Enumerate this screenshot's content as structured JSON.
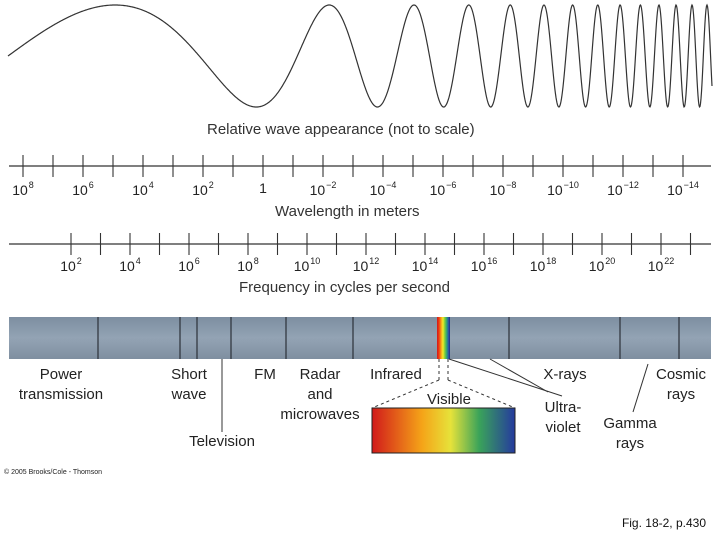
{
  "wave_caption": "Relative wave appearance (not to scale)",
  "wavelength": {
    "ticks": [
      {
        "base": "10",
        "exp": "8"
      },
      {
        "base": "10",
        "exp": "6"
      },
      {
        "base": "10",
        "exp": "4"
      },
      {
        "base": "10",
        "exp": "2"
      },
      {
        "base": "1",
        "exp": ""
      },
      {
        "base": "10",
        "exp": "−2"
      },
      {
        "base": "10",
        "exp": "−4"
      },
      {
        "base": "10",
        "exp": "−6"
      },
      {
        "base": "10",
        "exp": "−8"
      },
      {
        "base": "10",
        "exp": "−10"
      },
      {
        "base": "10",
        "exp": "−12"
      },
      {
        "base": "10",
        "exp": "−14"
      }
    ],
    "caption": "Wavelength in meters"
  },
  "frequency": {
    "ticks": [
      {
        "base": "10",
        "exp": "2"
      },
      {
        "base": "10",
        "exp": "4"
      },
      {
        "base": "10",
        "exp": "6"
      },
      {
        "base": "10",
        "exp": "8"
      },
      {
        "base": "10",
        "exp": "10"
      },
      {
        "base": "10",
        "exp": "12"
      },
      {
        "base": "10",
        "exp": "14"
      },
      {
        "base": "10",
        "exp": "16"
      },
      {
        "base": "10",
        "exp": "18"
      },
      {
        "base": "10",
        "exp": "20"
      },
      {
        "base": "10",
        "exp": "22"
      }
    ],
    "caption": "Frequency in cycles per second"
  },
  "bands": {
    "power": "Power\ntransmission",
    "short_wave": "Short\nwave",
    "fm": "FM",
    "radar": "Radar\nand\nmicrowaves",
    "infrared": "Infrared",
    "visible": "Visible",
    "xrays": "X-rays",
    "cosmic": "Cosmic\nrays",
    "ultraviolet": "Ultra-\nviolet",
    "gamma": "Gamma\nrays",
    "television": "Television"
  },
  "colors": {
    "band_bar": "#8a9aab",
    "band_divider": "#2c3138"
  },
  "copyright": "© 2005 Brooks/Cole - Thomson",
  "fig_ref": "Fig. 18-2, p.430"
}
